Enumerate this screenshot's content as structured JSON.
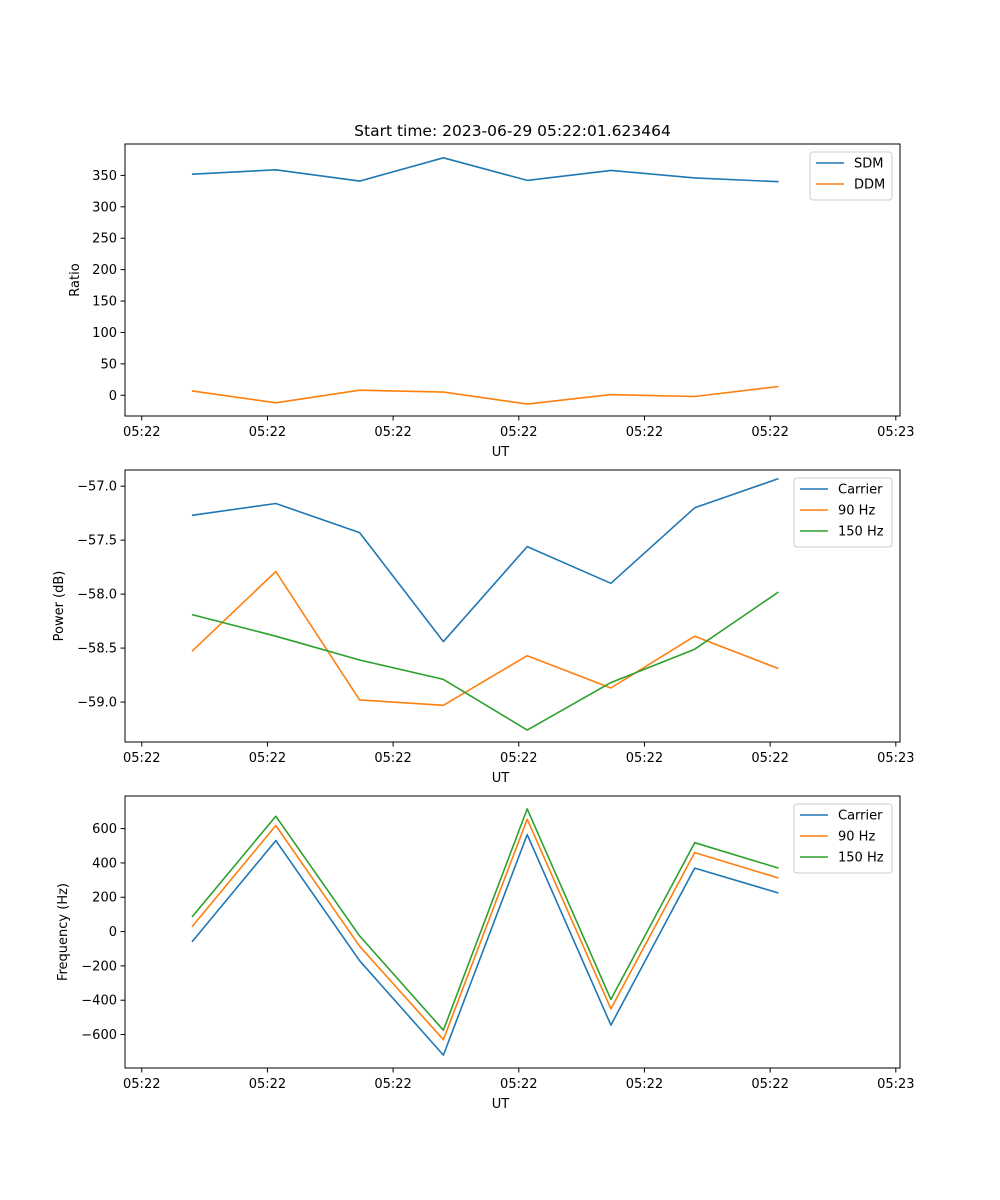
{
  "figure": {
    "title": "Start time: 2023-06-29 05:22:01.623464"
  },
  "colors": {
    "blue": "#1f77b4",
    "orange": "#ff7f0e",
    "green": "#2ca02c"
  },
  "chart_data": [
    {
      "type": "line",
      "title": "Start time: 2023-06-29 05:22:01.623464",
      "xlabel": "UT",
      "ylabel": "Ratio",
      "x": [
        1,
        2,
        3,
        4,
        5,
        6,
        7,
        8
      ],
      "xlim": [
        0.2,
        9.45
      ],
      "xticks": [
        0.4,
        1.9,
        3.4,
        4.9,
        6.4,
        7.9,
        9.4
      ],
      "xtick_labels": [
        "05:22",
        "05:22",
        "05:22",
        "05:22",
        "05:22",
        "05:22",
        "05:23"
      ],
      "ylim": [
        -33,
        400
      ],
      "yticks": [
        0,
        50,
        100,
        150,
        200,
        250,
        300,
        350
      ],
      "ytick_labels": [
        "0",
        "50",
        "100",
        "150",
        "200",
        "250",
        "300",
        "350"
      ],
      "legend": "top-right",
      "grid": false,
      "series": [
        {
          "name": "SDM",
          "color": "blue",
          "values": [
            352,
            359,
            341,
            378,
            342,
            358,
            346,
            340
          ]
        },
        {
          "name": "DDM",
          "color": "orange",
          "values": [
            7,
            -12,
            8,
            5,
            -14,
            1,
            -2,
            14
          ]
        }
      ]
    },
    {
      "type": "line",
      "xlabel": "UT",
      "ylabel": "Power (dB)",
      "x": [
        1,
        2,
        3,
        4,
        5,
        6,
        7,
        8
      ],
      "xlim": [
        0.2,
        9.45
      ],
      "xticks": [
        0.4,
        1.9,
        3.4,
        4.9,
        6.4,
        7.9,
        9.4
      ],
      "xtick_labels": [
        "05:22",
        "05:22",
        "05:22",
        "05:22",
        "05:22",
        "05:22",
        "05:23"
      ],
      "ylim": [
        -59.37,
        -56.85
      ],
      "yticks": [
        -59.0,
        -58.5,
        -58.0,
        -57.5,
        -57.0
      ],
      "ytick_labels": [
        "−59.0",
        "−58.5",
        "−58.0",
        "−57.5",
        "−57.0"
      ],
      "legend": "top-right",
      "grid": false,
      "series": [
        {
          "name": "Carrier",
          "color": "blue",
          "values": [
            -57.27,
            -57.16,
            -57.43,
            -58.44,
            -57.56,
            -57.9,
            -57.2,
            -56.93
          ]
        },
        {
          "name": "90 Hz",
          "color": "orange",
          "values": [
            -58.53,
            -57.79,
            -58.98,
            -59.03,
            -58.57,
            -58.87,
            -58.39,
            -58.69
          ]
        },
        {
          "name": "150 Hz",
          "color": "green",
          "values": [
            -58.19,
            -58.39,
            -58.61,
            -58.79,
            -59.26,
            -58.82,
            -58.51,
            -57.98
          ]
        }
      ]
    },
    {
      "type": "line",
      "xlabel": "UT",
      "ylabel": "Frequency (Hz)",
      "x": [
        1,
        2,
        3,
        4,
        5,
        6,
        7,
        8
      ],
      "xlim": [
        0.2,
        9.45
      ],
      "xticks": [
        0.4,
        1.9,
        3.4,
        4.9,
        6.4,
        7.9,
        9.4
      ],
      "xtick_labels": [
        "05:22",
        "05:22",
        "05:22",
        "05:22",
        "05:22",
        "05:22",
        "05:23"
      ],
      "ylim": [
        -795,
        790
      ],
      "yticks": [
        -600,
        -400,
        -200,
        0,
        200,
        400,
        600
      ],
      "ytick_labels": [
        "−600",
        "−400",
        "−200",
        "0",
        "200",
        "400",
        "600"
      ],
      "legend": "top-right",
      "grid": false,
      "series": [
        {
          "name": "Carrier",
          "color": "blue",
          "values": [
            -60,
            530,
            -170,
            -720,
            565,
            -545,
            370,
            225
          ]
        },
        {
          "name": "90 Hz",
          "color": "orange",
          "values": [
            28,
            618,
            -85,
            -630,
            655,
            -450,
            460,
            312
          ]
        },
        {
          "name": "150 Hz",
          "color": "green",
          "values": [
            85,
            672,
            -25,
            -575,
            715,
            -395,
            518,
            370
          ]
        }
      ]
    }
  ]
}
